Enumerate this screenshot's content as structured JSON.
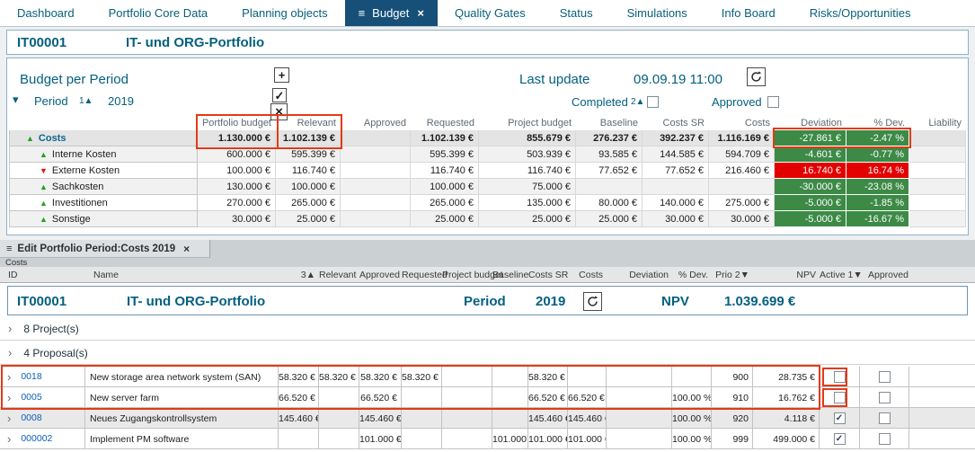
{
  "icons": {
    "burger": "≡",
    "close": "×",
    "plus": "+",
    "check": "✓",
    "chevron": "▾",
    "expand": "›",
    "up_triangle": "▲",
    "down_triangle": "▼"
  },
  "colors": {
    "accent_teal": "#04607f",
    "good_green": "#3c8a46",
    "bad_red": "#e30000",
    "annotation_red": "#e23a17",
    "active_tab_bg": "#164f78",
    "link_blue": "#0d5fba"
  },
  "nav": {
    "items": [
      "Dashboard",
      "Portfolio Core Data",
      "Planning objects",
      "Quality Gates",
      "Status",
      "Simulations",
      "Info Board",
      "Risks/Opportunities"
    ],
    "active_tab": {
      "label": "Budget"
    }
  },
  "portfolio_header": {
    "id": "IT00001",
    "name": "IT- und ORG-Portfolio"
  },
  "budget_panel": {
    "title": "Budget per Period",
    "last_update_label": "Last update",
    "last_update_value": "09.09.19 11:00",
    "period": {
      "label": "Period",
      "sort": "1▲",
      "year": "2019"
    },
    "completed": {
      "label": "Completed",
      "sort": "2▲",
      "checked": false
    },
    "approved": {
      "label": "Approved",
      "checked": false
    },
    "table": {
      "columns": [
        "Portfolio budget",
        "Relevant",
        "Approved",
        "Requested",
        "Project budget",
        "Baseline",
        "Costs SR",
        "Costs",
        "Deviation",
        "% Dev.",
        "Liability"
      ],
      "rows": [
        {
          "name": "Costs",
          "trend": "up",
          "values": [
            "1.130.000 €",
            "1.102.139 €",
            "",
            "1.102.139 €",
            "855.679 €",
            "276.237 €",
            "392.237 €",
            "1.116.169 €"
          ],
          "deviation": "-27.861 €",
          "pct_dev": "-2.47 %",
          "dev_status": "good"
        },
        {
          "name": "Interne Kosten",
          "trend": "up",
          "values": [
            "600.000 €",
            "595.399 €",
            "",
            "595.399 €",
            "503.939 €",
            "93.585 €",
            "144.585 €",
            "594.709 €"
          ],
          "deviation": "-4.601 €",
          "pct_dev": "-0.77 %",
          "dev_status": "good"
        },
        {
          "name": "Externe Kosten",
          "trend": "down",
          "values": [
            "100.000 €",
            "116.740 €",
            "",
            "116.740 €",
            "116.740 €",
            "77.652 €",
            "77.652 €",
            "216.460 €"
          ],
          "deviation": "16.740 €",
          "pct_dev": "16.74 %",
          "dev_status": "bad"
        },
        {
          "name": "Sachkosten",
          "trend": "up",
          "values": [
            "130.000 €",
            "100.000 €",
            "",
            "100.000 €",
            "75.000 €",
            "",
            "",
            ""
          ],
          "deviation": "-30.000 €",
          "pct_dev": "-23.08 %",
          "dev_status": "good"
        },
        {
          "name": "Investitionen",
          "trend": "up",
          "values": [
            "270.000 €",
            "265.000 €",
            "",
            "265.000 €",
            "135.000 €",
            "80.000 €",
            "140.000 €",
            "275.000 €"
          ],
          "deviation": "-5.000 €",
          "pct_dev": "-1.85 %",
          "dev_status": "good"
        },
        {
          "name": "Sonstige",
          "trend": "up",
          "values": [
            "30.000 €",
            "25.000 €",
            "",
            "25.000 €",
            "25.000 €",
            "25.000 €",
            "30.000 €",
            "30.000 €"
          ],
          "deviation": "-5.000 €",
          "pct_dev": "-16.67 %",
          "dev_status": "good"
        }
      ]
    }
  },
  "edit_panel": {
    "tab_title": "Edit Portfolio Period:Costs 2019",
    "subtitle": "Costs",
    "columns": [
      "ID",
      "Name",
      "3▲",
      "Relevant",
      "Approved",
      "Requested",
      "Project budget",
      "Baseline",
      "Costs SR",
      "Costs",
      "Deviation",
      "% Dev.",
      "Prio 2▼",
      "NPV",
      "Active 1▼",
      "Approved"
    ],
    "summary": {
      "id": "IT00001",
      "name": "IT- und ORG-Portfolio",
      "period_label": "Period",
      "period_value": "2019",
      "npv_label": "NPV",
      "npv_value": "1.039.699 €"
    },
    "groups": [
      {
        "label": "8 Project(s)"
      },
      {
        "label": "4 Proposal(s)"
      }
    ],
    "proposals": [
      {
        "id": "0018",
        "name": "New storage area network system (SAN)",
        "cells": [
          "58.320 €",
          "58.320 €",
          "58.320 €",
          "58.320 €",
          "",
          "",
          "58.320 €",
          "",
          "",
          "",
          "900",
          "28.735 €"
        ],
        "active": false,
        "approved": false,
        "highlighted": true
      },
      {
        "id": "0005",
        "name": "New server farm",
        "cells": [
          "66.520 €",
          "",
          "66.520 €",
          "",
          "",
          "",
          "66.520 €",
          "66.520 €",
          "",
          "100.00 %",
          "910",
          "16.762 €"
        ],
        "active": false,
        "approved": false,
        "highlighted": true
      },
      {
        "id": "0008",
        "name": "Neues Zugangskontrollsystem",
        "cells": [
          "145.460 €",
          "",
          "145.460 €",
          "",
          "",
          "",
          "145.460 €",
          "145.460 €",
          "",
          "100.00 %",
          "920",
          "4.118 €"
        ],
        "active": true,
        "approved": false,
        "highlighted": false
      },
      {
        "id": "000002",
        "name": "Implement PM software",
        "cells": [
          "",
          "",
          "101.000 €",
          "",
          "",
          "101.000 €",
          "101.000 €",
          "101.000 €",
          "",
          "100.00 %",
          "999",
          "499.000 €"
        ],
        "active": true,
        "approved": false,
        "highlighted": false
      }
    ]
  }
}
